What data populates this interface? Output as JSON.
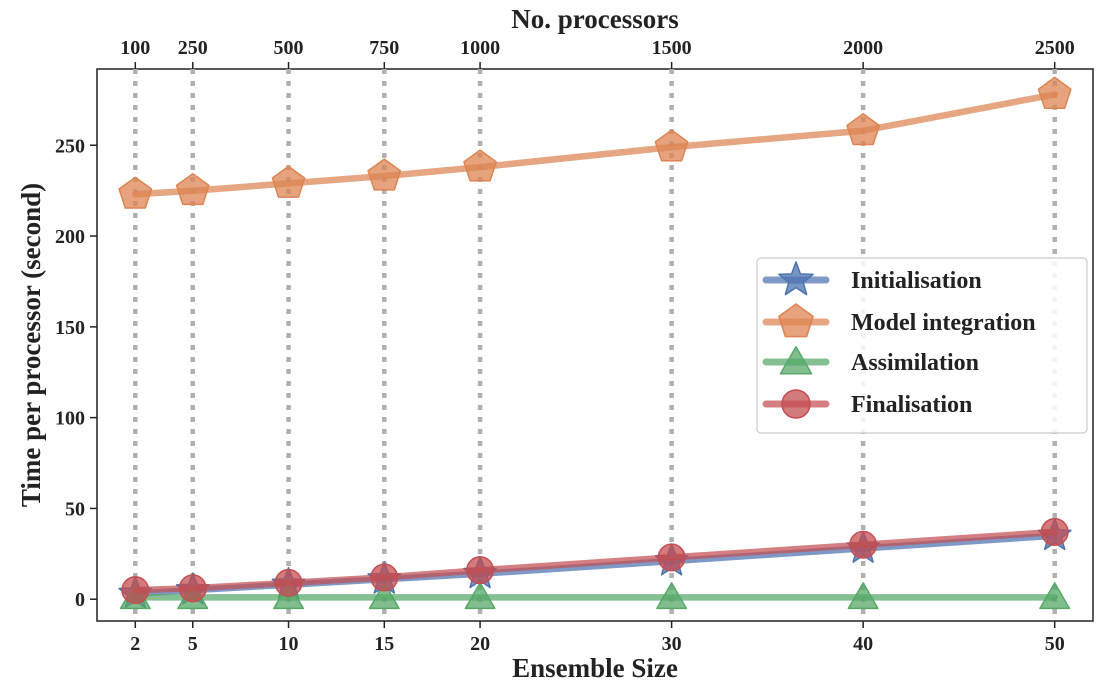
{
  "chart_data": {
    "type": "line",
    "xlabel": "Ensemble Size",
    "ylabel": "Time per processor (second)",
    "x2label": "No. processors",
    "x": [
      2,
      5,
      10,
      15,
      20,
      30,
      40,
      50
    ],
    "x_tick_labels": [
      "2",
      "5",
      "10",
      "15",
      "20",
      "30",
      "40",
      "50"
    ],
    "x2_tick_labels": [
      "100",
      "250",
      "500",
      "750",
      "1000",
      "1500",
      "2000",
      "2500"
    ],
    "xlim": [
      0,
      52
    ],
    "ylim": [
      -12,
      292
    ],
    "y_ticks": [
      0,
      50,
      100,
      150,
      200,
      250
    ],
    "grid": "vertical dotted lines at each ensemble size",
    "legend_position": "center-right",
    "series": [
      {
        "name": "Initialisation",
        "marker": "star",
        "color": "#4c72b0",
        "values": [
          3,
          5,
          8,
          11,
          14,
          21,
          28,
          35
        ]
      },
      {
        "name": "Model integration",
        "marker": "pentagon",
        "color": "#dd8452",
        "values": [
          223,
          225,
          229,
          233,
          238,
          249,
          258,
          278
        ]
      },
      {
        "name": "Assimilation",
        "marker": "triangle",
        "color": "#55a868",
        "values": [
          1,
          1,
          1,
          1,
          1,
          1,
          1,
          1
        ]
      },
      {
        "name": "Finalisation",
        "marker": "circle",
        "color": "#c44e52",
        "values": [
          5,
          6,
          9,
          12,
          16,
          23,
          30,
          37
        ]
      }
    ]
  }
}
